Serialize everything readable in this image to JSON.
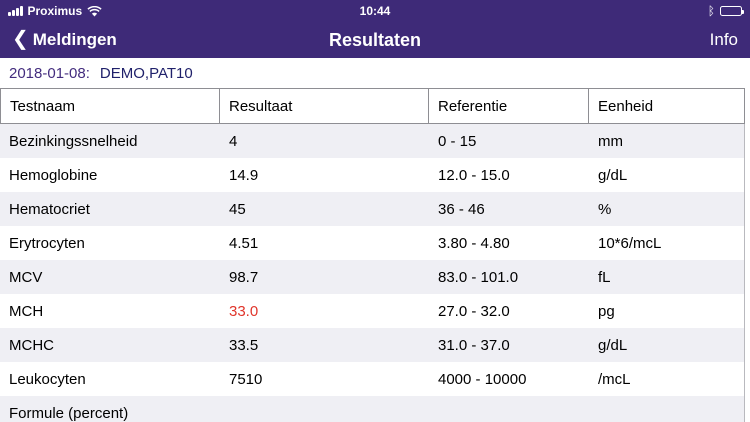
{
  "status_bar": {
    "carrier": "Proximus",
    "time": "10:44"
  },
  "nav_bar": {
    "back_label": "Meldingen",
    "back_chevron": "❮",
    "title": "Resultaten",
    "info_label": "Info"
  },
  "patient": {
    "date": "2018-01-08:",
    "name": "DEMO,PAT10"
  },
  "table": {
    "headers": [
      "Testnaam",
      "Resultaat",
      "Referentie",
      "Eenheid"
    ],
    "rows": [
      {
        "test": "Bezinkingssnelheid",
        "result": "4",
        "reference": "0 - 15",
        "unit": "mm",
        "abnormal": false
      },
      {
        "test": "Hemoglobine",
        "result": "14.9",
        "reference": "12.0 - 15.0",
        "unit": "g/dL",
        "abnormal": false
      },
      {
        "test": "Hematocriet",
        "result": "45",
        "reference": "36 - 46",
        "unit": "%",
        "abnormal": false
      },
      {
        "test": "Erytrocyten",
        "result": "4.51",
        "reference": "3.80 - 4.80",
        "unit": "10*6/mcL",
        "abnormal": false
      },
      {
        "test": "MCV",
        "result": "98.7",
        "reference": "83.0 - 101.0",
        "unit": "fL",
        "abnormal": false
      },
      {
        "test": "MCH",
        "result": "33.0",
        "reference": "27.0 - 32.0",
        "unit": "pg",
        "abnormal": true
      },
      {
        "test": "MCHC",
        "result": "33.5",
        "reference": "31.0 - 37.0",
        "unit": "g/dL",
        "abnormal": false
      },
      {
        "test": "Leukocyten",
        "result": "7510",
        "reference": "4000 - 10000",
        "unit": "/mcL",
        "abnormal": false
      },
      {
        "test": "Formule (percent)",
        "result": "",
        "reference": "",
        "unit": "",
        "abnormal": false
      }
    ]
  },
  "icons": {
    "bluetooth_glyph": "ᛒ"
  },
  "colors": {
    "header_purple": "#3e2a78",
    "date_purple": "#432c7e",
    "patient_navy": "#20216b",
    "abnormal_red": "#e0352b",
    "row_gray": "#efeff4"
  }
}
